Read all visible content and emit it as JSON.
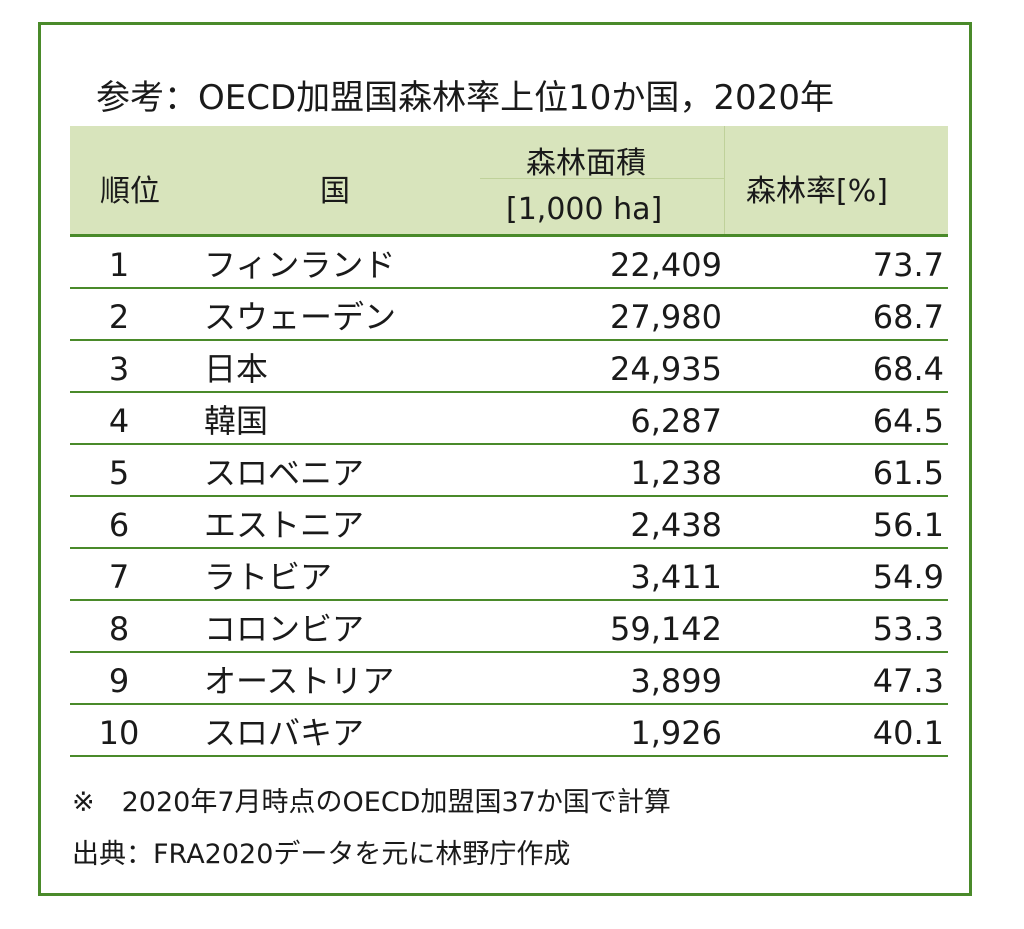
{
  "title": "参考：OECD加盟国森林率上位10か国，2020年",
  "table": {
    "headers": {
      "rank": "順位",
      "country": "国",
      "area_line1": "森林面積",
      "area_line2": "[1,000 ha]",
      "rate": "森林率[%]"
    },
    "rows": [
      {
        "rank": "1",
        "country": "フィンランド",
        "area": "22,409",
        "rate": "73.7"
      },
      {
        "rank": "2",
        "country": "スウェーデン",
        "area": "27,980",
        "rate": "68.7"
      },
      {
        "rank": "3",
        "country": "日本",
        "area": "24,935",
        "rate": "68.4"
      },
      {
        "rank": "4",
        "country": "韓国",
        "area": "6,287",
        "rate": "64.5"
      },
      {
        "rank": "5",
        "country": "スロベニア",
        "area": "1,238",
        "rate": "61.5"
      },
      {
        "rank": "6",
        "country": "エストニア",
        "area": "2,438",
        "rate": "56.1"
      },
      {
        "rank": "7",
        "country": "ラトビア",
        "area": "3,411",
        "rate": "54.9"
      },
      {
        "rank": "8",
        "country": "コロンビア",
        "area": "59,142",
        "rate": "53.3"
      },
      {
        "rank": "9",
        "country": "オーストリア",
        "area": "3,899",
        "rate": "47.3"
      },
      {
        "rank": "10",
        "country": "スロバキア",
        "area": "1,926",
        "rate": "40.1"
      }
    ]
  },
  "notes": {
    "calc": "※　2020年7月時点のOECD加盟国37か国で計算",
    "source": "出典：FRA2020データを元に林野庁作成"
  },
  "colors": {
    "border": "#4a8a2a",
    "header_bg": "#d8e4bc"
  }
}
